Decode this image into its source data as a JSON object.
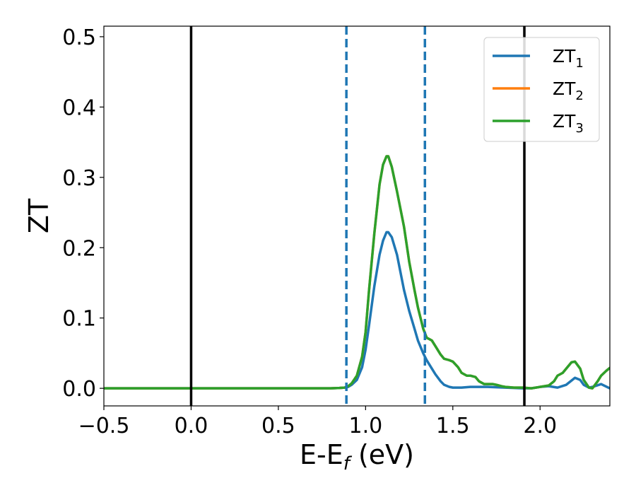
{
  "chart_data": {
    "type": "line",
    "xlabel": "E-E",
    "xlabel_sub": "f",
    "xlabel_unit": " (eV)",
    "ylabel": "ZT",
    "xlim": [
      -0.5,
      2.4
    ],
    "ylim": [
      -0.025,
      0.515
    ],
    "xticks": [
      -0.5,
      0.0,
      0.5,
      1.0,
      1.5,
      2.0
    ],
    "xtick_labels": [
      "−0.5",
      "0.0",
      "0.5",
      "1.0",
      "1.5",
      "2.0"
    ],
    "yticks": [
      0.0,
      0.1,
      0.2,
      0.3,
      0.4,
      0.5
    ],
    "ytick_labels": [
      "0.0",
      "0.1",
      "0.2",
      "0.3",
      "0.4",
      "0.5"
    ],
    "grid": false,
    "legend_position": "top-right",
    "vlines_solid": [
      0.0,
      1.91
    ],
    "vlines_dashed": [
      0.89,
      1.34
    ],
    "series": [
      {
        "name": "ZT",
        "name_sub": "1",
        "color": "#1f77b4",
        "x": [
          -0.5,
          0.8,
          0.85,
          0.88,
          0.9,
          0.92,
          0.95,
          0.98,
          1.0,
          1.02,
          1.05,
          1.08,
          1.1,
          1.12,
          1.13,
          1.15,
          1.18,
          1.2,
          1.22,
          1.25,
          1.28,
          1.3,
          1.33,
          1.35,
          1.38,
          1.4,
          1.43,
          1.45,
          1.48,
          1.5,
          1.55,
          1.6,
          1.7,
          1.8,
          1.9,
          1.95,
          2.0,
          2.05,
          2.1,
          2.15,
          2.2,
          2.23,
          2.25,
          2.28,
          2.3,
          2.35,
          2.4
        ],
        "y": [
          0.0,
          0.0,
          0.0005,
          0.001,
          0.002,
          0.005,
          0.012,
          0.03,
          0.055,
          0.09,
          0.145,
          0.19,
          0.21,
          0.222,
          0.222,
          0.215,
          0.19,
          0.165,
          0.14,
          0.11,
          0.085,
          0.068,
          0.05,
          0.04,
          0.028,
          0.02,
          0.01,
          0.005,
          0.002,
          0.001,
          0.001,
          0.002,
          0.002,
          0.001,
          0.0,
          0.0,
          0.002,
          0.003,
          0.001,
          0.005,
          0.015,
          0.012,
          0.005,
          0.001,
          0.002,
          0.006,
          0.0
        ]
      },
      {
        "name": "ZT",
        "name_sub": "2",
        "color": "#ff7f0e",
        "x": [
          -0.5,
          0.8,
          0.85,
          0.88,
          0.9,
          0.92,
          0.95,
          0.98,
          1.0,
          1.02,
          1.05,
          1.08,
          1.1,
          1.12,
          1.13,
          1.15,
          1.18,
          1.2,
          1.22,
          1.25,
          1.28,
          1.3,
          1.33,
          1.35,
          1.38,
          1.4,
          1.43,
          1.45,
          1.48,
          1.5,
          1.53,
          1.55,
          1.58,
          1.6,
          1.63,
          1.65,
          1.68,
          1.7,
          1.73,
          1.75,
          1.78,
          1.8,
          1.85,
          1.9,
          1.95,
          2.0,
          2.05,
          2.08,
          2.1,
          2.13,
          2.15,
          2.18,
          2.2,
          2.23,
          2.25,
          2.28,
          2.3,
          2.33,
          2.35,
          2.38,
          2.4
        ],
        "y": [
          0.0,
          0.0,
          0.0005,
          0.001,
          0.003,
          0.007,
          0.018,
          0.045,
          0.08,
          0.14,
          0.22,
          0.29,
          0.318,
          0.33,
          0.33,
          0.315,
          0.28,
          0.255,
          0.23,
          0.18,
          0.14,
          0.115,
          0.085,
          0.072,
          0.068,
          0.06,
          0.048,
          0.042,
          0.04,
          0.038,
          0.03,
          0.022,
          0.018,
          0.018,
          0.016,
          0.01,
          0.006,
          0.006,
          0.006,
          0.005,
          0.003,
          0.002,
          0.001,
          0.001,
          0.0,
          0.002,
          0.004,
          0.01,
          0.018,
          0.022,
          0.028,
          0.037,
          0.038,
          0.028,
          0.012,
          0.001,
          0.0,
          0.01,
          0.018,
          0.025,
          0.029
        ]
      },
      {
        "name": "ZT",
        "name_sub": "3",
        "color": "#2ca02c",
        "x": [
          -0.5,
          0.8,
          0.85,
          0.88,
          0.9,
          0.92,
          0.95,
          0.98,
          1.0,
          1.02,
          1.05,
          1.08,
          1.1,
          1.12,
          1.13,
          1.15,
          1.18,
          1.2,
          1.22,
          1.25,
          1.28,
          1.3,
          1.33,
          1.35,
          1.38,
          1.4,
          1.43,
          1.45,
          1.48,
          1.5,
          1.53,
          1.55,
          1.58,
          1.6,
          1.63,
          1.65,
          1.68,
          1.7,
          1.73,
          1.75,
          1.78,
          1.8,
          1.85,
          1.9,
          1.95,
          2.0,
          2.05,
          2.08,
          2.1,
          2.13,
          2.15,
          2.18,
          2.2,
          2.23,
          2.25,
          2.28,
          2.3,
          2.33,
          2.35,
          2.38,
          2.4
        ],
        "y": [
          0.0,
          0.0,
          0.0005,
          0.001,
          0.003,
          0.007,
          0.018,
          0.045,
          0.08,
          0.14,
          0.22,
          0.29,
          0.318,
          0.33,
          0.33,
          0.315,
          0.28,
          0.255,
          0.23,
          0.18,
          0.14,
          0.115,
          0.085,
          0.072,
          0.068,
          0.06,
          0.048,
          0.042,
          0.04,
          0.038,
          0.03,
          0.022,
          0.018,
          0.018,
          0.016,
          0.01,
          0.006,
          0.006,
          0.006,
          0.005,
          0.003,
          0.002,
          0.001,
          0.001,
          0.0,
          0.002,
          0.004,
          0.01,
          0.018,
          0.022,
          0.028,
          0.037,
          0.038,
          0.028,
          0.012,
          0.001,
          0.0,
          0.01,
          0.018,
          0.025,
          0.029
        ]
      }
    ]
  }
}
